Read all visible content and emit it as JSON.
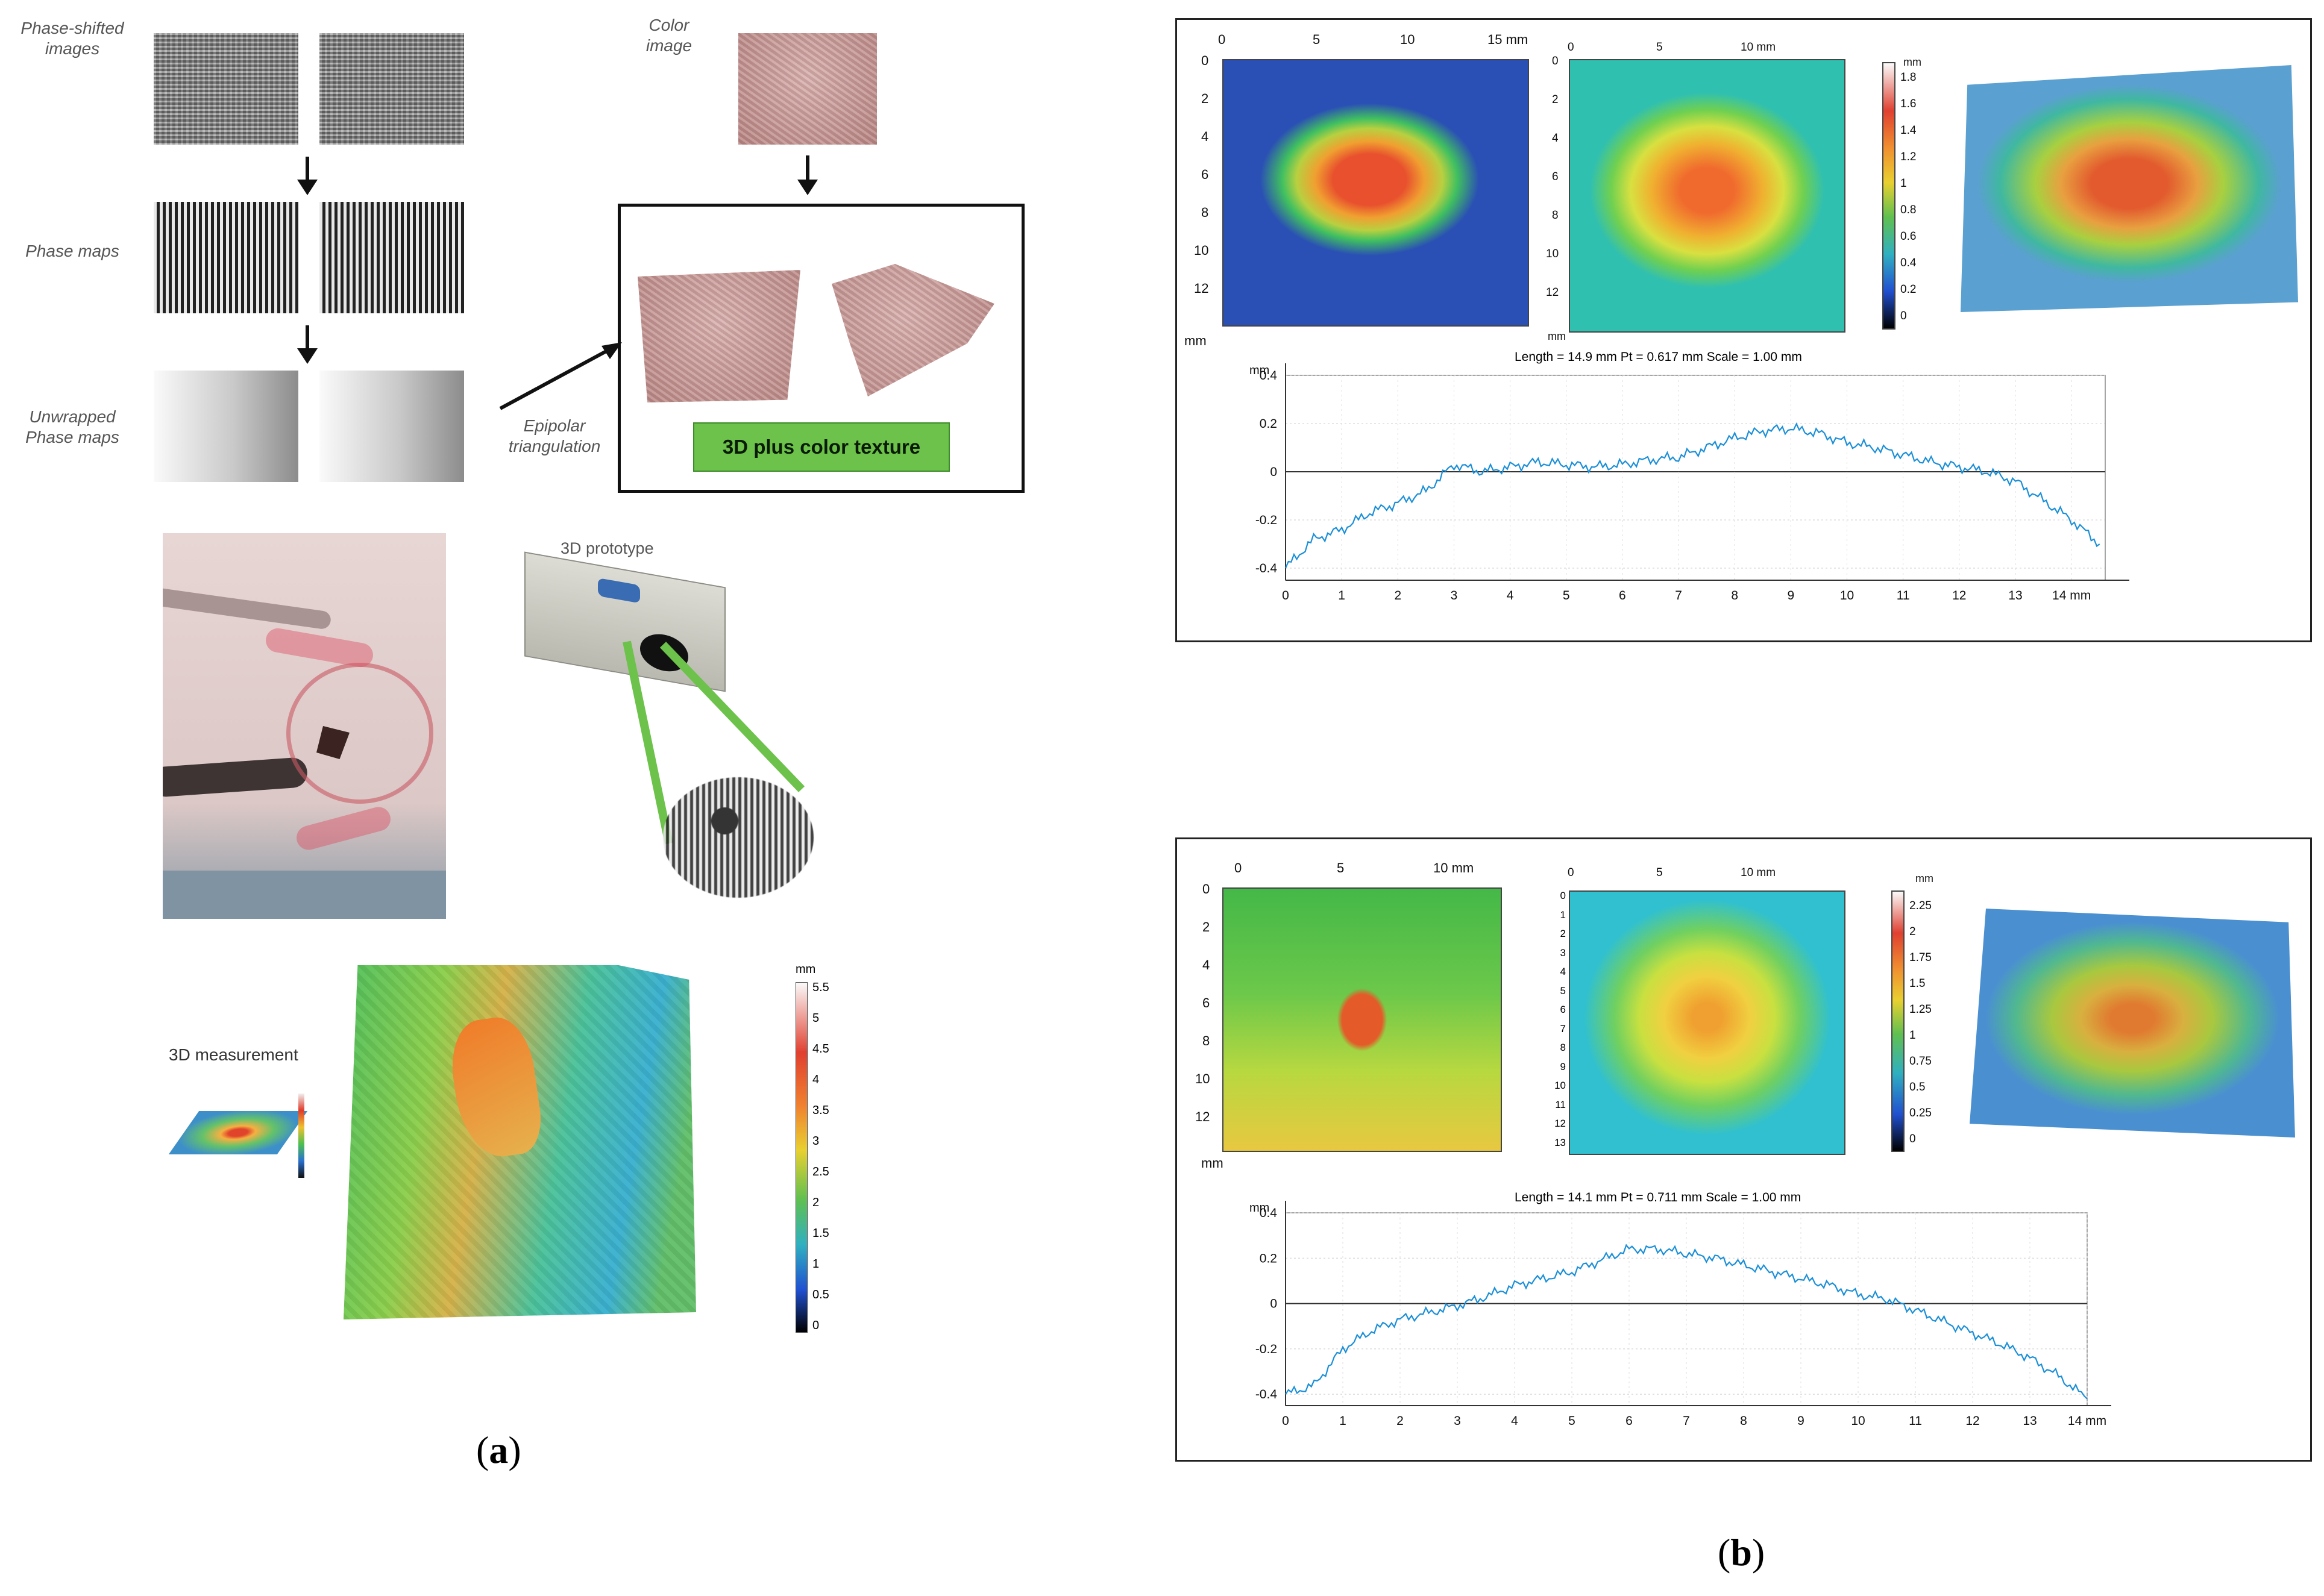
{
  "panel_a": {
    "caption_letter": "a",
    "labels": {
      "phase_shifted": [
        "Phase-shifted",
        "images"
      ],
      "phase_maps": "Phase maps",
      "unwrapped": [
        "Unwrapped",
        "Phase maps"
      ],
      "color_image": [
        "Color",
        "image"
      ],
      "epipolar": [
        "Epipolar",
        "triangulation"
      ],
      "texture_badge": "3D plus color texture",
      "prototype": "3D prototype",
      "measurement": "3D measurement"
    },
    "colorbar": {
      "unit": "mm",
      "ticks": [
        "5.5",
        "5",
        "4.5",
        "4",
        "3.5",
        "3",
        "2.5",
        "2",
        "1.5",
        "1",
        "0.5",
        "0"
      ]
    }
  },
  "panel_b": {
    "caption_letter": "b",
    "figures": [
      {
        "map1_xticks": [
          "0",
          "5",
          "10",
          "15 mm"
        ],
        "map1_yticks": [
          "0",
          "2",
          "4",
          "6",
          "8",
          "10",
          "12"
        ],
        "map2_xticks": [
          "0",
          "5",
          "10 mm"
        ],
        "map2_yticks": [
          "0",
          "2",
          "4",
          "6",
          "8",
          "10",
          "12"
        ],
        "mm_label": "mm",
        "colorbar_unit": "mm",
        "colorbar_ticks": [
          "1.8",
          "1.6",
          "1.4",
          "1.2",
          "1",
          "0.8",
          "0.6",
          "0.4",
          "0.2",
          "0"
        ],
        "profile_title": "Length = 14.9 mm  Pt = 0.617 mm  Scale = 1.00 mm"
      },
      {
        "map1_xticks": [
          "0",
          "5",
          "10 mm"
        ],
        "map1_yticks": [
          "0",
          "2",
          "4",
          "6",
          "8",
          "10",
          "12"
        ],
        "map2_xticks": [
          "0",
          "5",
          "10 mm"
        ],
        "map2_yticks": [
          "0",
          "1",
          "2",
          "3",
          "4",
          "5",
          "6",
          "7",
          "8",
          "9",
          "10",
          "11",
          "12",
          "13"
        ],
        "mm_label": "mm",
        "colorbar_unit": "mm",
        "colorbar_ticks": [
          "2.25",
          "2",
          "1.75",
          "1.5",
          "1.25",
          "1",
          "0.75",
          "0.5",
          "0.25",
          "0"
        ],
        "profile_title": "Length = 14.1 mm  Pt = 0.711 mm  Scale = 1.00 mm"
      }
    ]
  },
  "chart_data": [
    {
      "type": "line",
      "title": "Length = 14.9 mm  Pt = 0.617 mm  Scale = 1.00 mm",
      "xlabel": "mm",
      "ylabel": "mm",
      "xlim": [
        0,
        14.6
      ],
      "ylim": [
        -0.45,
        0.4
      ],
      "xticks": [
        "0",
        "1",
        "2",
        "3",
        "4",
        "5",
        "6",
        "7",
        "8",
        "9",
        "10",
        "11",
        "12",
        "13",
        "14 mm"
      ],
      "yticks": [
        "0.4",
        "0.2",
        "0",
        "-0.2",
        "-0.4"
      ],
      "series": [
        {
          "name": "profile",
          "x": [
            0,
            0.5,
            1,
            1.5,
            2,
            2.5,
            3,
            3.5,
            4,
            4.5,
            5,
            5.5,
            6,
            6.5,
            7,
            7.5,
            8,
            8.5,
            9,
            9.5,
            10,
            10.5,
            11,
            11.5,
            12,
            12.5,
            13,
            13.5,
            14,
            14.5
          ],
          "y": [
            -0.4,
            -0.28,
            -0.24,
            -0.17,
            -0.13,
            -0.08,
            0.03,
            0.0,
            0.02,
            0.04,
            0.03,
            0.02,
            0.03,
            0.05,
            0.06,
            0.1,
            0.14,
            0.17,
            0.18,
            0.16,
            0.12,
            0.1,
            0.07,
            0.04,
            0.02,
            0.0,
            -0.04,
            -0.12,
            -0.2,
            -0.3
          ]
        }
      ]
    },
    {
      "type": "line",
      "title": "Length = 14.1 mm  Pt = 0.711 mm  Scale = 1.00 mm",
      "xlabel": "mm",
      "ylabel": "mm",
      "xlim": [
        0,
        14
      ],
      "ylim": [
        -0.45,
        0.4
      ],
      "xticks": [
        "0",
        "1",
        "2",
        "3",
        "4",
        "5",
        "6",
        "7",
        "8",
        "9",
        "10",
        "11",
        "12",
        "13",
        "14 mm"
      ],
      "yticks": [
        "0.4",
        "0.2",
        "0",
        "-0.2",
        "-0.4"
      ],
      "series": [
        {
          "name": "profile",
          "x": [
            0,
            0.5,
            1,
            1.5,
            2,
            2.5,
            3,
            3.5,
            4,
            4.5,
            5,
            5.5,
            6,
            6.5,
            7,
            7.5,
            8,
            8.5,
            9,
            9.5,
            10,
            10.5,
            11,
            11.5,
            12,
            12.5,
            13,
            13.5,
            14
          ],
          "y": [
            -0.4,
            -0.36,
            -0.2,
            -0.12,
            -0.07,
            -0.04,
            -0.01,
            0.03,
            0.08,
            0.11,
            0.14,
            0.19,
            0.24,
            0.24,
            0.22,
            0.2,
            0.17,
            0.14,
            0.11,
            0.08,
            0.04,
            0.02,
            -0.03,
            -0.08,
            -0.13,
            -0.18,
            -0.24,
            -0.32,
            -0.42
          ]
        }
      ]
    }
  ]
}
